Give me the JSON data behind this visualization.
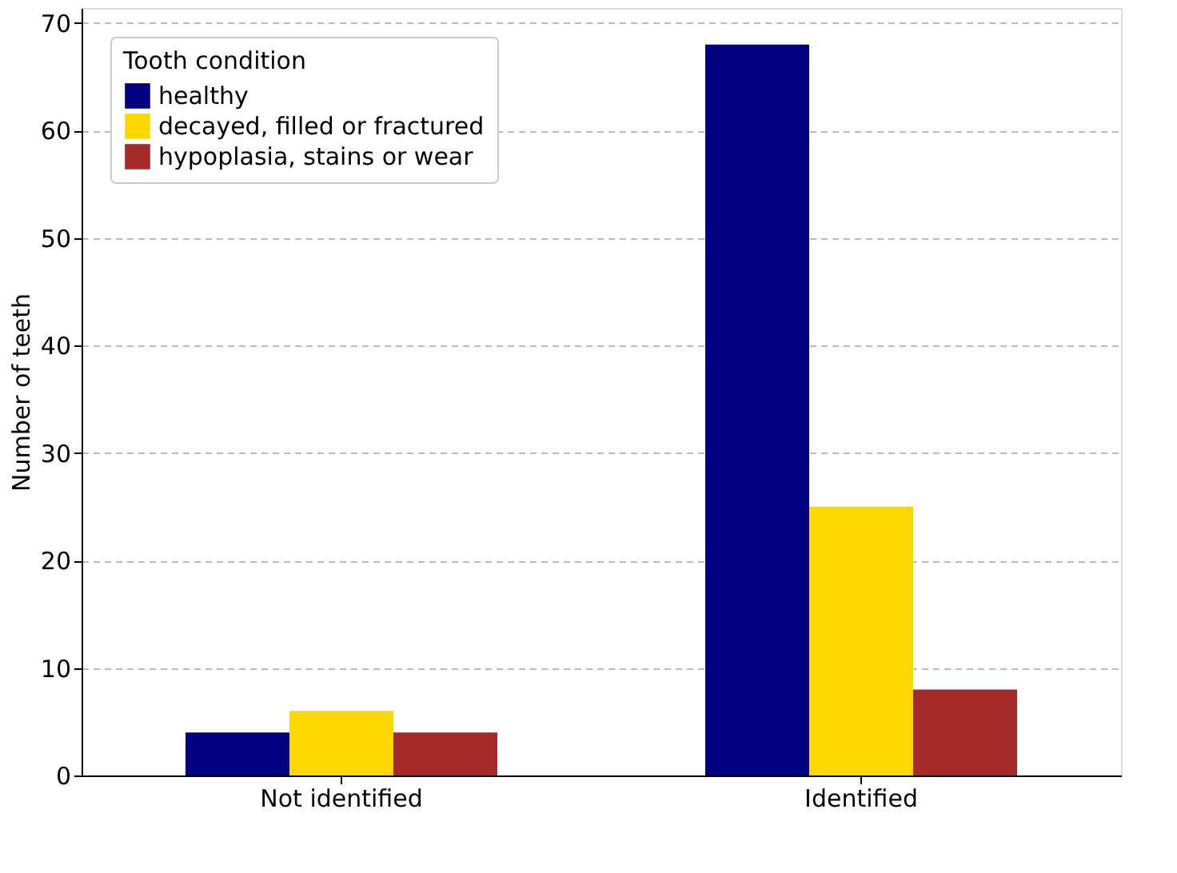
{
  "chart_data": {
    "type": "bar",
    "categories": [
      "Not identified",
      "Identified"
    ],
    "series": [
      {
        "name": "healthy",
        "color": "#000080",
        "values": [
          4,
          68
        ]
      },
      {
        "name": "decayed, filled or fractured",
        "color": "#ffd700",
        "values": [
          6,
          25
        ]
      },
      {
        "name": "hypoplasia, stains or wear",
        "color": "#a52a2a",
        "values": [
          4,
          8
        ]
      }
    ],
    "ylabel": "Number of teeth",
    "legend_title": "Tooth condition",
    "ylim": [
      0,
      71.4
    ],
    "yticks": [
      0,
      10,
      20,
      30,
      40,
      50,
      60,
      70
    ],
    "grid": "y",
    "legend": "top left"
  }
}
